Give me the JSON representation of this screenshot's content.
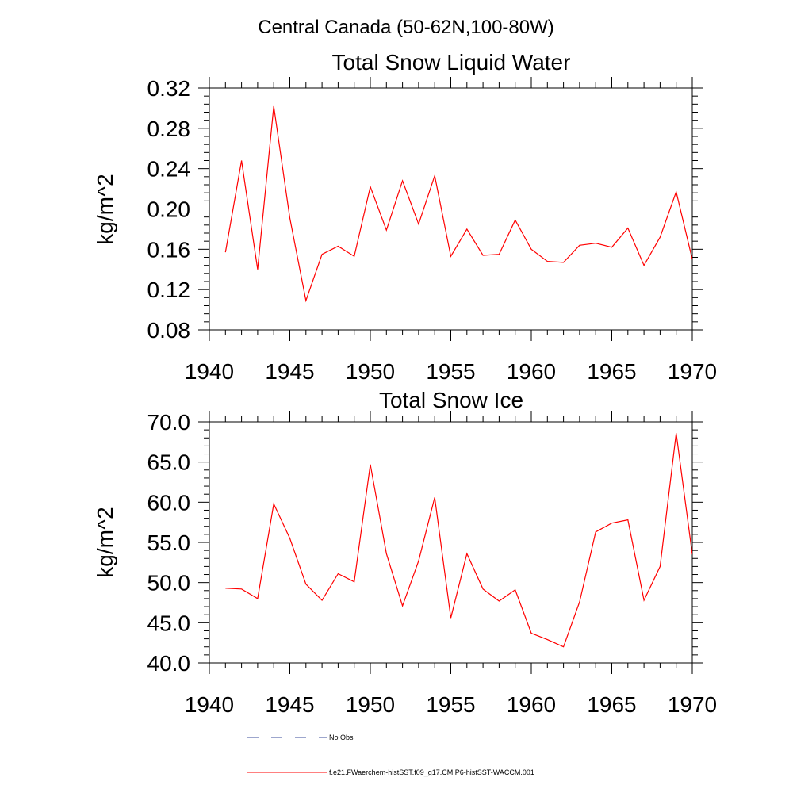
{
  "figure": {
    "title": "Central Canada (50-62N,100-80W)"
  },
  "chart_data": [
    {
      "type": "line",
      "title": "Total Snow Liquid Water",
      "xlabel": "",
      "ylabel": "kg/m^2",
      "xlim": [
        1940,
        1970
      ],
      "ylim": [
        0.08,
        0.32
      ],
      "xticks": [
        1940,
        1945,
        1950,
        1955,
        1960,
        1965,
        1970
      ],
      "xtick_labels": [
        "1940",
        "1945",
        "1950",
        "1955",
        "1960",
        "1965",
        "1970"
      ],
      "yticks": [
        0.08,
        0.12,
        0.16,
        0.2,
        0.24,
        0.28,
        0.32
      ],
      "ytick_labels": [
        "0.08",
        "0.12",
        "0.16",
        "0.20",
        "0.24",
        "0.28",
        "0.32"
      ],
      "grid": false,
      "series": [
        {
          "color": "#ff0000",
          "x": [
            1941,
            1942,
            1943,
            1944,
            1945,
            1946,
            1947,
            1948,
            1949,
            1950,
            1951,
            1952,
            1953,
            1954,
            1955,
            1956,
            1957,
            1958,
            1959,
            1960,
            1961,
            1962,
            1963,
            1964,
            1965,
            1966,
            1967,
            1968,
            1969,
            1970
          ],
          "values": [
            0.157,
            0.248,
            0.14,
            0.302,
            0.191,
            0.109,
            0.155,
            0.163,
            0.153,
            0.222,
            0.179,
            0.228,
            0.185,
            0.233,
            0.153,
            0.18,
            0.154,
            0.155,
            0.189,
            0.16,
            0.148,
            0.147,
            0.164,
            0.166,
            0.162,
            0.181,
            0.144,
            0.172,
            0.217,
            0.15
          ]
        }
      ]
    },
    {
      "type": "line",
      "title": "Total Snow Ice",
      "xlabel": "",
      "ylabel": "kg/m^2",
      "xlim": [
        1940,
        1970
      ],
      "ylim": [
        40.0,
        70.0
      ],
      "xticks": [
        1940,
        1945,
        1950,
        1955,
        1960,
        1965,
        1970
      ],
      "xtick_labels": [
        "1940",
        "1945",
        "1950",
        "1955",
        "1960",
        "1965",
        "1970"
      ],
      "yticks": [
        40,
        45,
        50,
        55,
        60,
        65,
        70
      ],
      "ytick_labels": [
        "40.0",
        "45.0",
        "50.0",
        "55.0",
        "60.0",
        "65.0",
        "70.0"
      ],
      "grid": false,
      "series": [
        {
          "color": "#ff0000",
          "x": [
            1941,
            1942,
            1943,
            1944,
            1945,
            1946,
            1947,
            1948,
            1949,
            1950,
            1951,
            1952,
            1953,
            1954,
            1955,
            1956,
            1957,
            1958,
            1959,
            1960,
            1961,
            1962,
            1963,
            1964,
            1965,
            1966,
            1967,
            1968,
            1969,
            1970
          ],
          "values": [
            49.3,
            49.2,
            48.0,
            59.8,
            55.5,
            49.8,
            47.8,
            51.1,
            50.1,
            64.7,
            53.6,
            47.1,
            52.7,
            60.6,
            45.6,
            53.6,
            49.2,
            47.7,
            49.1,
            43.7,
            42.9,
            42.0,
            47.6,
            56.3,
            57.4,
            57.8,
            47.8,
            52.0,
            68.6,
            53.5
          ]
        }
      ]
    }
  ],
  "legend": {
    "entries": [
      {
        "label": "No Obs",
        "color": "#3b4c9b",
        "style": "dashed"
      },
      {
        "label": "f.e21.FWaerchem-histSST.f09_g17.CMIP6-histSST-WACCM.001",
        "color": "#ff0000",
        "style": "solid"
      }
    ]
  }
}
